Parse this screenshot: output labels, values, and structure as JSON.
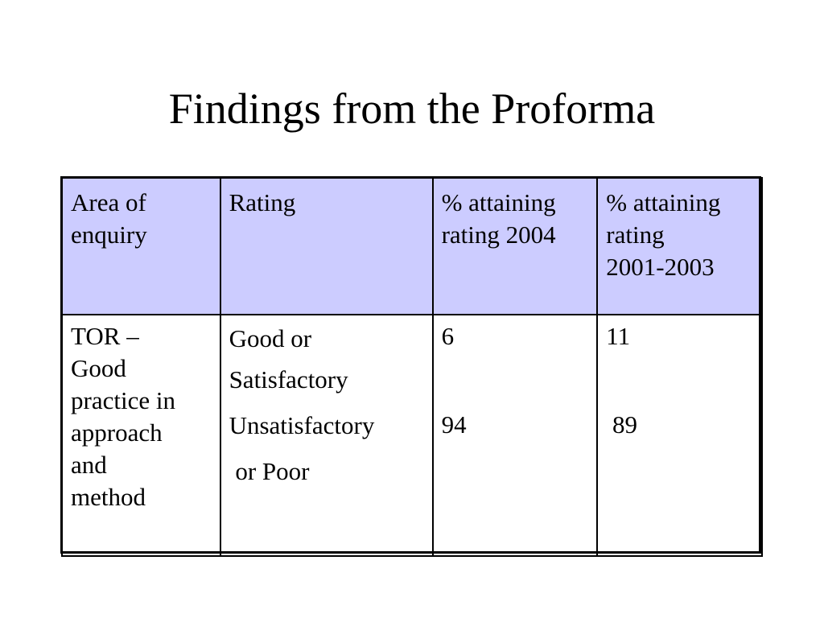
{
  "slide": {
    "title": "Findings from the Proforma"
  },
  "table": {
    "headers": [
      "Area of enquiry",
      "Rating",
      "% attaining rating 2004",
      "% attaining rating 2001-2003"
    ],
    "header_lines": {
      "area": [
        "Area of",
        "enquiry"
      ],
      "rating": [
        "Rating"
      ],
      "pct_2004": [
        "% attaining",
        "rating 2004"
      ],
      "pct_2001_2003": [
        "% attaining",
        "rating",
        "2001-2003"
      ]
    },
    "rows": [
      {
        "area_lines": [
          "TOR –",
          "Good",
          "practice in",
          "approach",
          "and",
          "method"
        ],
        "rating_lines": [
          "Good or",
          "Satisfactory",
          "Unsatisfactory",
          " or Poor"
        ],
        "pct_2004": [
          "6",
          "94"
        ],
        "pct_2001_2003": [
          "11",
          " 89"
        ]
      }
    ],
    "colors": {
      "header_background": "#ccccff",
      "border": "#000000"
    }
  }
}
